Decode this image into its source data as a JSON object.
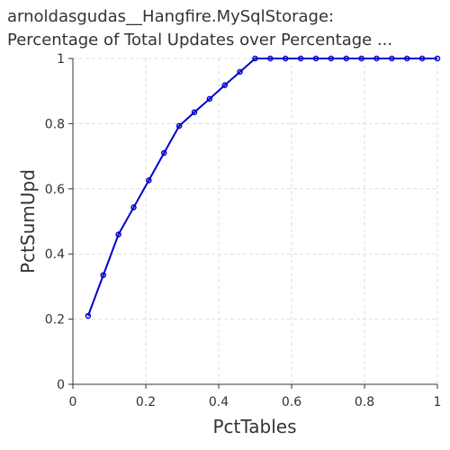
{
  "chart_data": {
    "type": "line",
    "title": [
      "arnoldasgudas__Hangfire.MySqlStorage:",
      "Percentage of Total Updates over Percentage ..."
    ],
    "xlabel": "PctTables",
    "ylabel": "PctSumUpd",
    "xlim": [
      0,
      1
    ],
    "ylim": [
      0,
      1
    ],
    "xticks": [
      "0",
      "0.2",
      "0.4",
      "0.6",
      "0.8",
      "1"
    ],
    "yticks": [
      "0",
      "0.2",
      "0.4",
      "0.6",
      "0.8",
      "1"
    ],
    "grid": true,
    "series": [
      {
        "color": "#0000cc",
        "x": [
          0.0417,
          0.0833,
          0.125,
          0.1667,
          0.2083,
          0.25,
          0.2917,
          0.3333,
          0.375,
          0.4167,
          0.4583,
          0.5,
          0.5417,
          0.5833,
          0.625,
          0.6667,
          0.7083,
          0.75,
          0.7917,
          0.8333,
          0.875,
          0.9167,
          0.9583,
          1.0
        ],
        "y": [
          0.21,
          0.335,
          0.46,
          0.543,
          0.626,
          0.71,
          0.793,
          0.835,
          0.876,
          0.918,
          0.959,
          1.0,
          1.0,
          1.0,
          1.0,
          1.0,
          1.0,
          1.0,
          1.0,
          1.0,
          1.0,
          1.0,
          1.0,
          1.0
        ]
      }
    ]
  }
}
